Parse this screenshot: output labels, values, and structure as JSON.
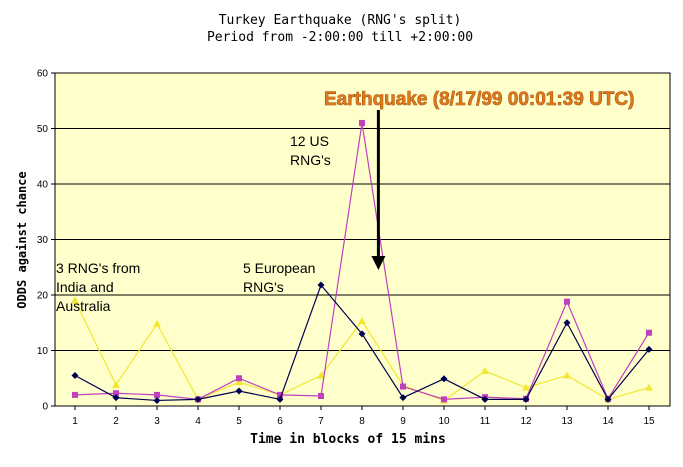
{
  "chart_data": {
    "type": "line",
    "title": "Turkey Earthquake (RNG's split)",
    "subtitle": "Period from -2:00:00 till +2:00:00",
    "xlabel": "Time in blocks of 15 mins",
    "ylabel": "ODDS against chance",
    "ylim": [
      0,
      60
    ],
    "yticks": [
      0,
      10,
      20,
      30,
      40,
      50,
      60
    ],
    "categories": [
      "1",
      "2",
      "3",
      "4",
      "5",
      "6",
      "7",
      "8",
      "9",
      "10",
      "11",
      "12",
      "13",
      "14",
      "15"
    ],
    "grid": true,
    "series": [
      {
        "key": "europe",
        "color": "#000050",
        "marker": "diamond",
        "values": [
          5.5,
          1.5,
          1.0,
          1.2,
          2.7,
          1.2,
          21.8,
          13.0,
          1.5,
          4.9,
          1.2,
          1.2,
          15.0,
          1.2,
          10.2
        ]
      },
      {
        "key": "us",
        "color": "#c040c0",
        "marker": "square",
        "values": [
          2.0,
          2.3,
          2.0,
          1.2,
          5.0,
          2.0,
          1.8,
          51.0,
          3.5,
          1.2,
          1.6,
          1.3,
          18.8,
          1.3,
          13.2
        ]
      },
      {
        "key": "india_australia",
        "color": "#f0e830",
        "marker": "triangle",
        "values": [
          19.0,
          3.8,
          14.8,
          1.2,
          4.3,
          2.0,
          5.5,
          15.3,
          3.7,
          1.0,
          6.3,
          3.3,
          5.5,
          1.2,
          3.3
        ]
      }
    ],
    "annotations": {
      "earthquake": "Earthquake (8/17/99 00:01:39 UTC)",
      "us": [
        "12 US",
        "RNG's"
      ],
      "europe": [
        "5 European",
        "RNG's"
      ],
      "india": [
        "3 RNG's from",
        "India and",
        "Australia"
      ]
    },
    "arrow_at_x": 8.4,
    "colors": {
      "plot_bg": "#ffffcc",
      "grid": "#000000"
    }
  }
}
